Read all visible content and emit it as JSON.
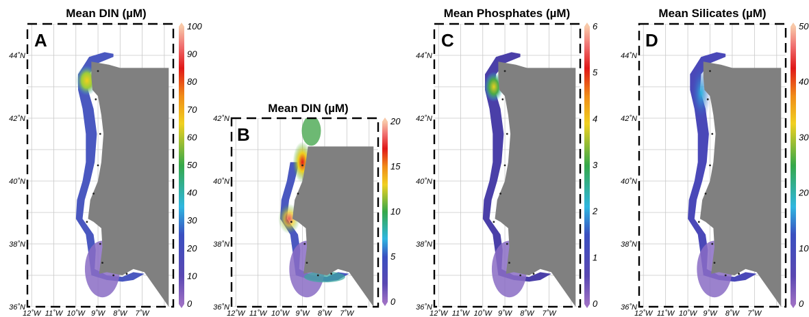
{
  "panels": [
    {
      "id": "A",
      "letter": "A",
      "title": "Mean DIN (µM)",
      "lat_labels": [
        "44˚N",
        "42˚N",
        "40˚N",
        "38˚N",
        "36˚N"
      ],
      "lon_labels": [
        "12˚W",
        "11˚W",
        "10˚W",
        "9˚W",
        "8˚W",
        "7˚W"
      ],
      "colorbar_ticks": [
        "0",
        "10",
        "20",
        "30",
        "40",
        "50",
        "60",
        "70",
        "80",
        "90",
        "100"
      ],
      "colorbar_range": [
        0,
        100
      ]
    },
    {
      "id": "B",
      "letter": "B",
      "title": "Mean DIN (µM)",
      "lat_labels": [
        "42˚N",
        "40˚N",
        "38˚N",
        "36˚N"
      ],
      "lon_labels": [
        "12˚W",
        "11˚W",
        "10˚W",
        "9˚W",
        "8˚W",
        "7˚W"
      ],
      "colorbar_ticks": [
        "0",
        "5",
        "10",
        "15",
        "20"
      ],
      "colorbar_range": [
        0,
        20
      ]
    },
    {
      "id": "C",
      "letter": "C",
      "title": "Mean Phosphates (µM)",
      "lat_labels": [
        "44˚N",
        "42˚N",
        "40˚N",
        "38˚N",
        "36˚N"
      ],
      "lon_labels": [
        "12˚W",
        "11˚W",
        "10˚W",
        "9˚W",
        "8˚W",
        "7˚W"
      ],
      "colorbar_ticks": [
        "0",
        "1",
        "2",
        "3",
        "4",
        "5",
        "6"
      ],
      "colorbar_range": [
        0,
        6
      ]
    },
    {
      "id": "D",
      "letter": "D",
      "title": "Mean Silicates (µM)",
      "lat_labels": [
        "44˚N",
        "42˚N",
        "40˚N",
        "38˚N",
        "36˚N"
      ],
      "lon_labels": [
        "12˚W",
        "11˚W",
        "10˚W",
        "9˚W",
        "8˚W",
        "7˚W"
      ],
      "colorbar_ticks": [
        "0",
        "10",
        "20",
        "30",
        "40",
        "50"
      ],
      "colorbar_range": [
        0,
        50
      ]
    }
  ],
  "colors": {
    "land": "#808080",
    "grid": "#c8c8c8",
    "colormap": [
      "#9c6fc4",
      "#4747b0",
      "#2fb6e0",
      "#3aa84c",
      "#f0d020",
      "#e01818",
      "#f8c4a8"
    ]
  }
}
